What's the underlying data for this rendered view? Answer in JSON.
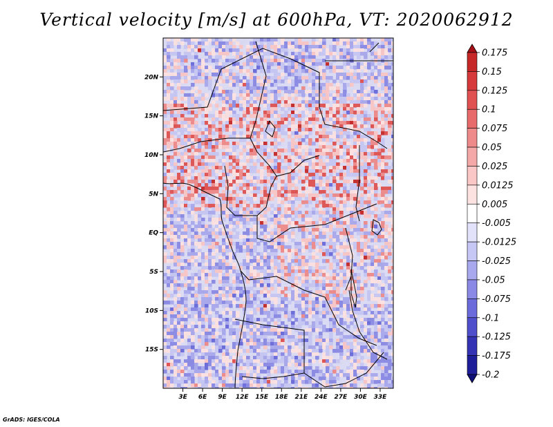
{
  "title": "Vertical velocity [m/s] at 600hPa, VT: 2020062912",
  "credit": "GrADS: IGES/COLA",
  "chart_data": {
    "type": "heatmap",
    "title": "Vertical velocity [m/s] at 600hPa, VT: 2020062912",
    "variable": "Vertical velocity",
    "units": "m/s",
    "level": "600hPa",
    "valid_time": "2020062912",
    "xlim": [
      0,
      35
    ],
    "ylim": [
      -20,
      25
    ],
    "x_ticks": [
      {
        "value": 3,
        "label": "3E"
      },
      {
        "value": 6,
        "label": "6E"
      },
      {
        "value": 9,
        "label": "9E"
      },
      {
        "value": 12,
        "label": "12E"
      },
      {
        "value": 15,
        "label": "15E"
      },
      {
        "value": 18,
        "label": "18E"
      },
      {
        "value": 21,
        "label": "21E"
      },
      {
        "value": 24,
        "label": "24E"
      },
      {
        "value": 27,
        "label": "27E"
      },
      {
        "value": 30,
        "label": "30E"
      },
      {
        "value": 33,
        "label": "33E"
      }
    ],
    "y_ticks": [
      {
        "value": 20,
        "label": "20N"
      },
      {
        "value": 15,
        "label": "15N"
      },
      {
        "value": 10,
        "label": "10N"
      },
      {
        "value": 5,
        "label": "5N"
      },
      {
        "value": 0,
        "label": "EQ"
      },
      {
        "value": -5,
        "label": "5S"
      },
      {
        "value": -10,
        "label": "10S"
      },
      {
        "value": -15,
        "label": "15S"
      }
    ],
    "colorbar": {
      "labels": [
        "0.175",
        "0.15",
        "0.125",
        "0.1",
        "0.075",
        "0.05",
        "0.025",
        "0.0125",
        "0.005",
        "-0.005",
        "-0.0125",
        "-0.025",
        "-0.05",
        "-0.075",
        "-0.1",
        "-0.125",
        "-0.175",
        "-0.2"
      ],
      "colors": [
        "#a50f15",
        "#c62828",
        "#d63a3a",
        "#e05252",
        "#e86b6b",
        "#ef8a8a",
        "#f5a8a8",
        "#fac6c6",
        "#fde2e2",
        "#ffffff",
        "#e2e2fb",
        "#c7c7f5",
        "#a8a8ee",
        "#8a8ae6",
        "#6b6bdc",
        "#4f4fcc",
        "#3333b3",
        "#1e1e99",
        "#0f0f7a"
      ]
    },
    "grid": false,
    "legend_position": "right"
  }
}
